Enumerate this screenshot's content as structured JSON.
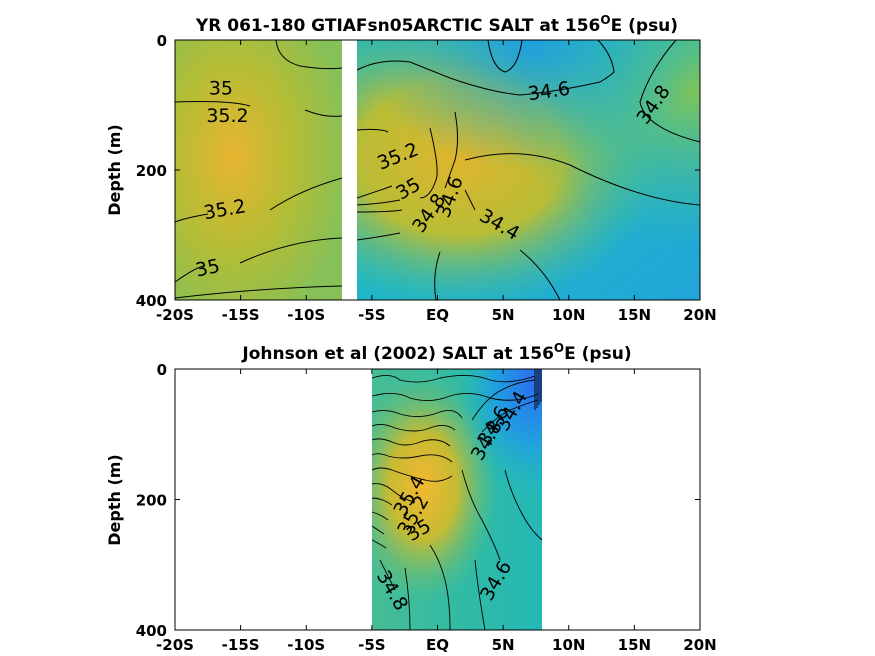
{
  "chart_data": [
    {
      "type": "contour",
      "title": "YR 061-180 GTIAFsn05ARCTIC SALT at 156",
      "title_sup": "O",
      "title_suffix": "E (psu)",
      "ylabel": "Depth (m)",
      "x_tick_labels": [
        "-20S",
        "-15S",
        "-10S",
        "-5S",
        "EQ",
        "5N",
        "10N",
        "15N",
        "20N"
      ],
      "x_ticks": [
        -20,
        -15,
        -10,
        -5,
        0,
        5,
        10,
        15,
        20
      ],
      "y_tick_labels": [
        "0",
        "200",
        "400"
      ],
      "y_ticks": [
        0,
        200,
        400
      ],
      "xlim": [
        -20,
        20
      ],
      "ylim": [
        400,
        0
      ],
      "data_gap_x": [
        -7.2,
        -6.6
      ],
      "contour_labels": [
        {
          "text": "35",
          "x": -16.5,
          "depth": 75
        },
        {
          "text": "35.2",
          "x": -16.0,
          "depth": 118
        },
        {
          "text": "35.2",
          "x": -16.2,
          "depth": 262
        },
        {
          "text": "35",
          "x": -17.5,
          "depth": 352
        },
        {
          "text": "34.6",
          "x": 8.5,
          "depth": 80
        },
        {
          "text": "34.8",
          "x": 16.5,
          "depth": 100
        },
        {
          "text": "35.2",
          "x": -3.0,
          "depth": 180
        },
        {
          "text": "35",
          "x": -2.2,
          "depth": 230
        },
        {
          "text": "34.8",
          "x": -0.6,
          "depth": 267
        },
        {
          "text": "34.6",
          "x": 1.0,
          "depth": 242
        },
        {
          "text": "34.4",
          "x": 4.7,
          "depth": 285
        }
      ]
    },
    {
      "type": "contour",
      "title": "Johnson et al (2002) SALT at 156",
      "title_sup": "O",
      "title_suffix": "E (psu)",
      "ylabel": "Depth (m)",
      "x_tick_labels": [
        "-20S",
        "-15S",
        "-10S",
        "-5S",
        "EQ",
        "5N",
        "10N",
        "15N",
        "20N"
      ],
      "x_ticks": [
        -20,
        -15,
        -10,
        -5,
        0,
        5,
        10,
        15,
        20
      ],
      "y_tick_labels": [
        "0",
        "200",
        "400"
      ],
      "y_ticks": [
        0,
        200,
        400
      ],
      "xlim": [
        -20,
        20
      ],
      "ylim": [
        400,
        0
      ],
      "data_range_x": [
        -5,
        8
      ],
      "contour_labels": [
        {
          "text": "34.4",
          "x": 5.7,
          "depth": 65
        },
        {
          "text": "34.6",
          "x": 4.3,
          "depth": 88
        },
        {
          "text": "34.8",
          "x": 3.8,
          "depth": 110
        },
        {
          "text": "35.4",
          "x": -2.1,
          "depth": 195
        },
        {
          "text": "35.2",
          "x": -1.8,
          "depth": 225
        },
        {
          "text": "35",
          "x": -1.4,
          "depth": 248
        },
        {
          "text": "34.8",
          "x": -3.5,
          "depth": 340
        },
        {
          "text": "34.6",
          "x": 4.5,
          "depth": 325
        }
      ]
    }
  ]
}
